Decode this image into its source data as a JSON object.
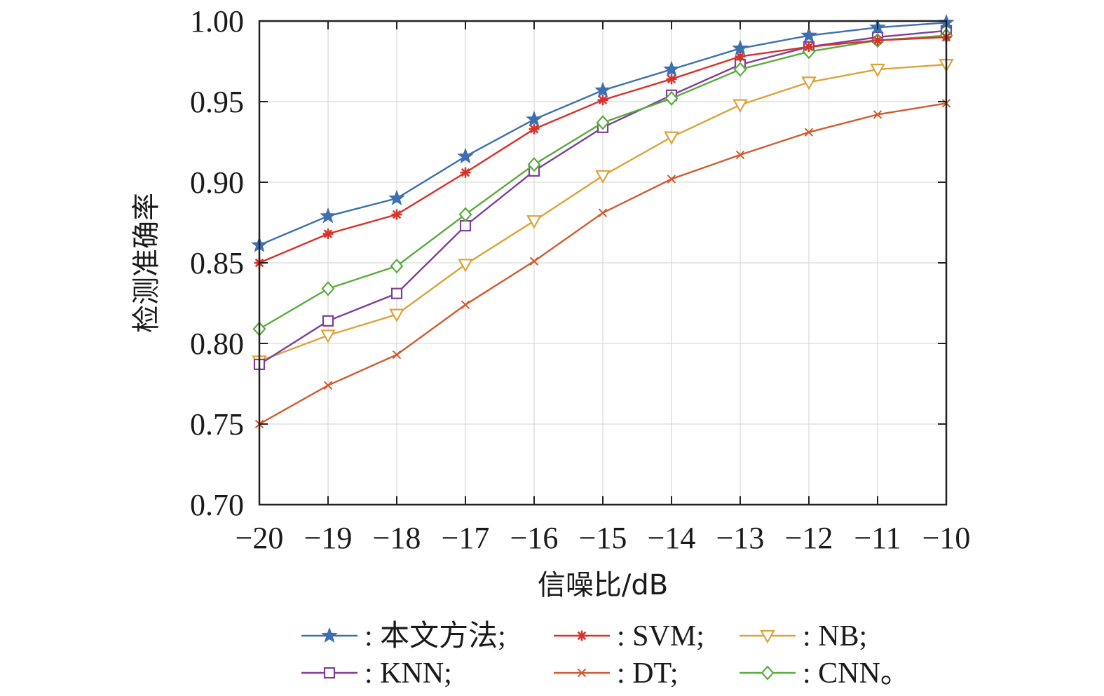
{
  "chart_data": {
    "type": "line",
    "title": "",
    "xlabel": "信噪比/dB",
    "ylabel": "检测准确率",
    "x": [
      -20,
      -19,
      -18,
      -17,
      -16,
      -15,
      -14,
      -13,
      -12,
      -11,
      -10
    ],
    "x_tick_labels": [
      "−20",
      "−19",
      "−18",
      "−17",
      "−16",
      "−15",
      "−14",
      "−13",
      "−12",
      "−11",
      "−10"
    ],
    "xlim": [
      -20,
      -10
    ],
    "ylim": [
      0.7,
      1.0
    ],
    "y_ticks": [
      0.7,
      0.75,
      0.8,
      0.85,
      0.9,
      0.95,
      1.0
    ],
    "y_tick_labels": [
      "0.70",
      "0.75",
      "0.80",
      "0.85",
      "0.90",
      "0.95",
      "1.00"
    ],
    "grid": true,
    "legend_position": "bottom",
    "series": [
      {
        "name": "本文方法",
        "legend_label": ": 本文方法;",
        "color": "#3e6fb0",
        "marker": "star",
        "values": [
          0.861,
          0.879,
          0.89,
          0.916,
          0.939,
          0.957,
          0.97,
          0.983,
          0.991,
          0.996,
          0.999
        ]
      },
      {
        "name": "SVM",
        "legend_label": ": SVM;",
        "color": "#d9312b",
        "marker": "asterisk",
        "values": [
          0.85,
          0.868,
          0.88,
          0.906,
          0.933,
          0.951,
          0.964,
          0.978,
          0.984,
          0.988,
          0.99
        ]
      },
      {
        "name": "NB",
        "legend_label": ": NB;",
        "color": "#dba43a",
        "marker": "triangle-down",
        "values": [
          0.789,
          0.805,
          0.818,
          0.849,
          0.876,
          0.904,
          0.928,
          0.948,
          0.962,
          0.97,
          0.973
        ]
      },
      {
        "name": "KNN",
        "legend_label": ": KNN;",
        "color": "#7d3f98",
        "marker": "square",
        "values": [
          0.787,
          0.814,
          0.831,
          0.873,
          0.907,
          0.934,
          0.954,
          0.973,
          0.984,
          0.99,
          0.994
        ]
      },
      {
        "name": "DT",
        "legend_label": ": DT;",
        "color": "#d15b2e",
        "marker": "x",
        "values": [
          0.75,
          0.774,
          0.793,
          0.824,
          0.851,
          0.881,
          0.902,
          0.917,
          0.931,
          0.942,
          0.949
        ]
      },
      {
        "name": "CNN",
        "legend_label": ": CNN。",
        "color": "#5aab3c",
        "marker": "diamond",
        "values": [
          0.809,
          0.834,
          0.848,
          0.88,
          0.911,
          0.937,
          0.952,
          0.97,
          0.981,
          0.988,
          0.991
        ]
      }
    ]
  }
}
